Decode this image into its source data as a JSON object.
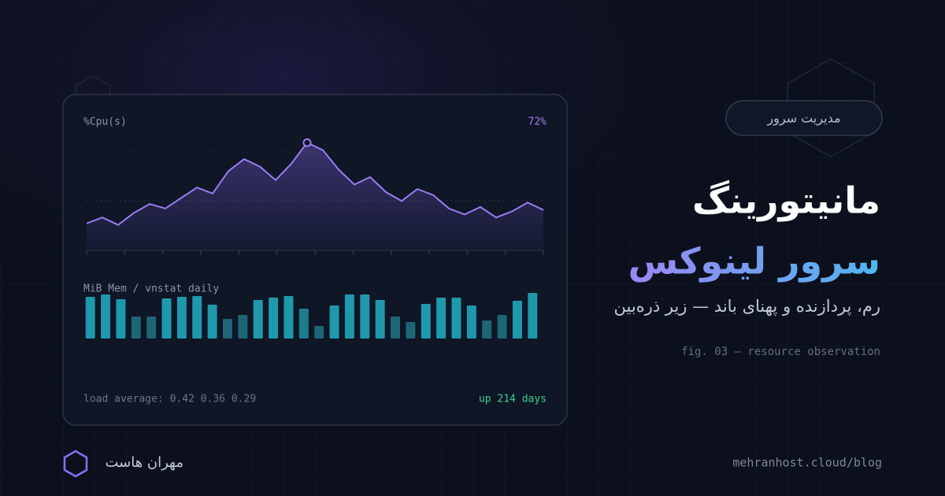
{
  "badge": "مدیریت سرور",
  "title": "مانیتورینگ",
  "title_accent": "سرور لینوکس",
  "subtitle": "رم، پردازنده و پهنای باند — زیر ذره‌بین",
  "caption": "fig. 03 — resource observation",
  "brand": "مهران هاست",
  "url": "mehranhost.cloud/blog",
  "panel": {
    "load": "load average: 0.42 0.36 0.29",
    "uptime": "up 214 days"
  },
  "chart_data": [
    {
      "type": "line",
      "title": "%Cpu(s)",
      "annotation": "72%",
      "color": "#9a7cf0",
      "values": [
        18,
        22,
        17,
        25,
        31,
        28,
        35,
        42,
        38,
        53,
        61,
        56,
        47,
        58,
        72,
        67,
        54,
        44,
        49,
        39,
        33,
        41,
        37,
        28,
        24,
        29,
        22,
        26,
        32,
        27
      ],
      "ylim": [
        0,
        100
      ]
    },
    {
      "type": "bar",
      "title": "MiB Mem / vnstat daily",
      "values": [
        53,
        56,
        50,
        28,
        28,
        51,
        53,
        54,
        43,
        25,
        30,
        49,
        52,
        54,
        38,
        16,
        42,
        56,
        56,
        49,
        28,
        21,
        44,
        52,
        52,
        42,
        23,
        30,
        48,
        58
      ],
      "colors": [
        "#1f98ac",
        "#1f98ac",
        "#1f98ac",
        "#1c6676",
        "#1c6676",
        "#1f98ac",
        "#1f98ac",
        "#1f98ac",
        "#1f98ac",
        "#1c6676",
        "#1c6676",
        "#1f98ac",
        "#1f98ac",
        "#1f98ac",
        "#1b7d8e",
        "#1c6676",
        "#1f98ac",
        "#1f98ac",
        "#1f98ac",
        "#1f98ac",
        "#1c6676",
        "#1c6676",
        "#1f98ac",
        "#1f98ac",
        "#1f98ac",
        "#1f98ac",
        "#1c6676",
        "#1c6676",
        "#1f98ac",
        "#1f98ac"
      ],
      "ylim": [
        0,
        100
      ]
    }
  ]
}
